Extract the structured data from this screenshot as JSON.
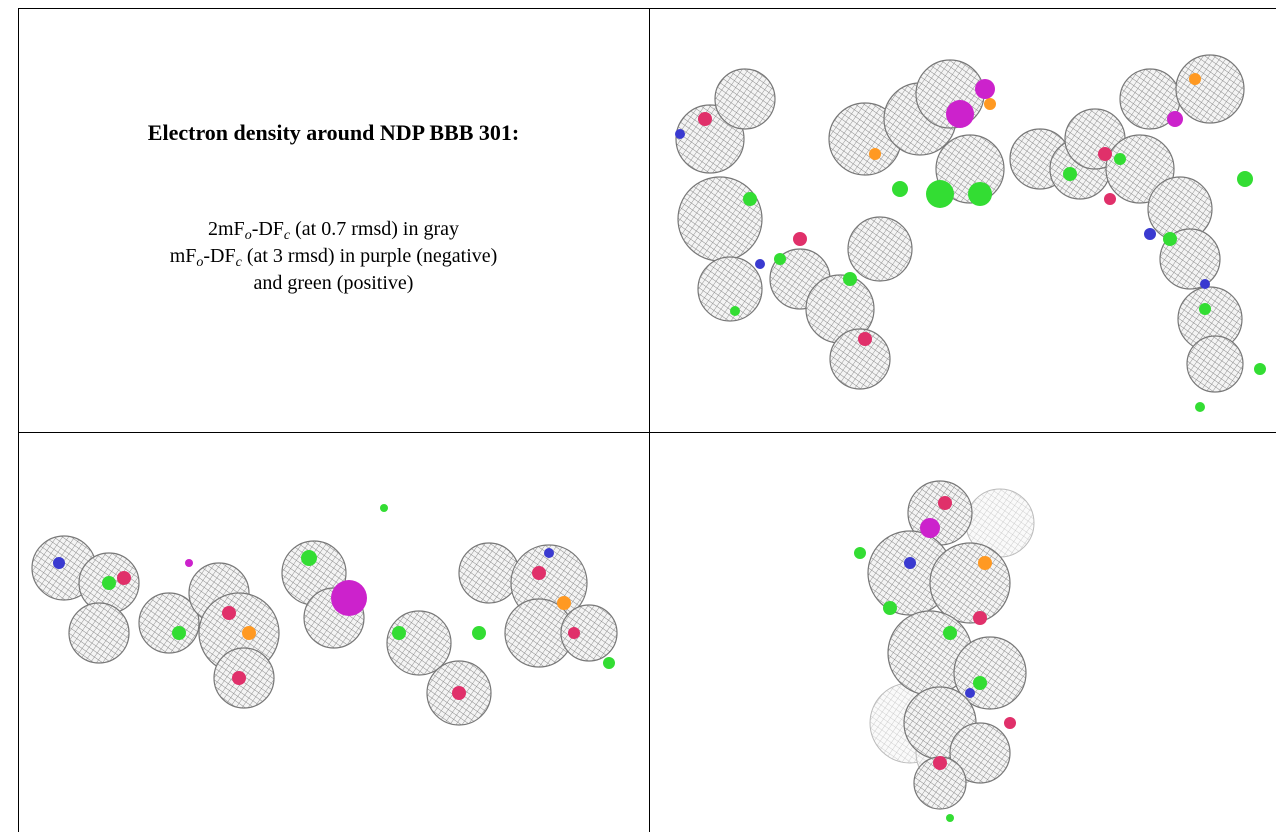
{
  "title": "Electron density around NDP BBB 301:",
  "legend_lines": [
    {
      "parts": [
        "2mF",
        "o",
        "-DF",
        "c",
        " (at 0.7 rmsd) in gray"
      ]
    },
    {
      "parts": [
        "mF",
        "o",
        "-DF",
        "c",
        " (at 3 rmsd) in purple (negative)"
      ]
    },
    {
      "parts": [
        "and green (positive)"
      ]
    }
  ]
}
